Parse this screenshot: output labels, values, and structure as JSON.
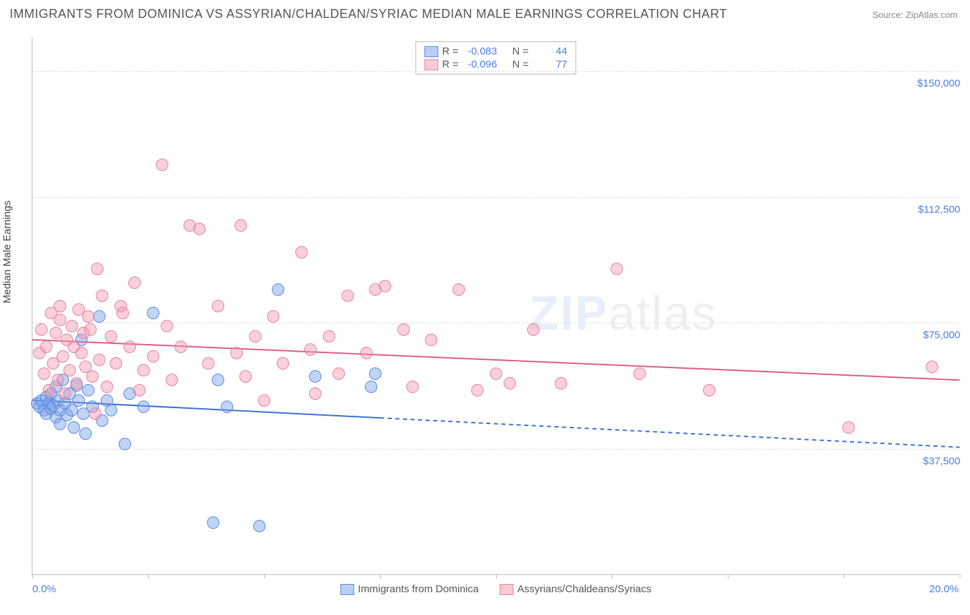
{
  "title": "IMMIGRANTS FROM DOMINICA VS ASSYRIAN/CHALDEAN/SYRIAC MEDIAN MALE EARNINGS CORRELATION CHART",
  "source": "Source: ZipAtlas.com",
  "ylabel": "Median Male Earnings",
  "watermark": {
    "zip": "ZIP",
    "atlas": "atlas"
  },
  "xaxis": {
    "min": 0.0,
    "max": 20.0,
    "ticks": [
      0.0,
      20.0
    ],
    "tick_labels": [
      "0.0%",
      "20.0%"
    ],
    "minor_ticks_every": 2.5,
    "label_color": "#4a7ee8"
  },
  "yaxis": {
    "min": 0,
    "max": 160000,
    "gridlines": [
      37500,
      75000,
      112500,
      150000
    ],
    "tick_labels": [
      "$37,500",
      "$75,000",
      "$112,500",
      "$150,000"
    ],
    "label_color": "#4a7ee8"
  },
  "grid_color": "#dddddd",
  "background_color": "#ffffff",
  "series": [
    {
      "name": "Immigrants from Dominica",
      "fill": "rgba(120,160,235,0.45)",
      "stroke": "#5a8adf",
      "swatch_fill": "rgba(120,160,235,0.5)",
      "swatch_stroke": "#5a8adf",
      "marker_radius": 9,
      "R": "-0.083",
      "N": "44",
      "trend": {
        "y_at_xmin": 52000,
        "y_at_xmax": 38000,
        "solid_until_x": 7.5,
        "color": "#3a6fd8",
        "width": 2
      },
      "points": [
        [
          0.1,
          51000
        ],
        [
          0.15,
          50000
        ],
        [
          0.2,
          52000
        ],
        [
          0.25,
          49000
        ],
        [
          0.3,
          53000
        ],
        [
          0.3,
          48000
        ],
        [
          0.35,
          51000
        ],
        [
          0.4,
          49500
        ],
        [
          0.4,
          54000
        ],
        [
          0.45,
          50500
        ],
        [
          0.5,
          47000
        ],
        [
          0.5,
          56000
        ],
        [
          0.55,
          52000
        ],
        [
          0.6,
          49000
        ],
        [
          0.6,
          45000
        ],
        [
          0.65,
          58000
        ],
        [
          0.7,
          51000
        ],
        [
          0.75,
          47500
        ],
        [
          0.8,
          54000
        ],
        [
          0.85,
          49000
        ],
        [
          0.9,
          44000
        ],
        [
          0.95,
          56500
        ],
        [
          1.0,
          52000
        ],
        [
          1.05,
          70000
        ],
        [
          1.1,
          48000
        ],
        [
          1.15,
          42000
        ],
        [
          1.2,
          55000
        ],
        [
          1.3,
          50000
        ],
        [
          1.45,
          77000
        ],
        [
          1.5,
          46000
        ],
        [
          1.6,
          52000
        ],
        [
          1.7,
          49000
        ],
        [
          2.0,
          39000
        ],
        [
          2.1,
          54000
        ],
        [
          2.4,
          50000
        ],
        [
          2.6,
          78000
        ],
        [
          3.9,
          15500
        ],
        [
          4.0,
          58000
        ],
        [
          4.2,
          50000
        ],
        [
          4.9,
          14500
        ],
        [
          5.3,
          85000
        ],
        [
          6.1,
          59000
        ],
        [
          7.3,
          56000
        ],
        [
          7.4,
          60000
        ]
      ]
    },
    {
      "name": "Assyrians/Chaldeans/Syriacs",
      "fill": "rgba(245,150,175,0.45)",
      "stroke": "#e6809f",
      "swatch_fill": "rgba(245,150,175,0.5)",
      "swatch_stroke": "#e6809f",
      "marker_radius": 9,
      "R": "-0.096",
      "N": "77",
      "trend": {
        "y_at_xmin": 70000,
        "y_at_xmax": 58000,
        "solid_until_x": 20.0,
        "color": "#e05a85",
        "width": 2
      },
      "points": [
        [
          0.15,
          66000
        ],
        [
          0.2,
          73000
        ],
        [
          0.25,
          60000
        ],
        [
          0.3,
          68000
        ],
        [
          0.35,
          55000
        ],
        [
          0.4,
          78000
        ],
        [
          0.45,
          63000
        ],
        [
          0.5,
          72000
        ],
        [
          0.55,
          58000
        ],
        [
          0.6,
          80000
        ],
        [
          0.6,
          76000
        ],
        [
          0.65,
          65000
        ],
        [
          0.7,
          54000
        ],
        [
          0.75,
          70000
        ],
        [
          0.8,
          61000
        ],
        [
          0.85,
          74000
        ],
        [
          0.9,
          68000
        ],
        [
          0.95,
          57000
        ],
        [
          1.0,
          79000
        ],
        [
          1.05,
          66000
        ],
        [
          1.1,
          72000
        ],
        [
          1.15,
          62000
        ],
        [
          1.2,
          77000
        ],
        [
          1.25,
          73000
        ],
        [
          1.3,
          59000
        ],
        [
          1.35,
          48000
        ],
        [
          1.4,
          91000
        ],
        [
          1.45,
          64000
        ],
        [
          1.5,
          83000
        ],
        [
          1.6,
          56000
        ],
        [
          1.7,
          71000
        ],
        [
          1.8,
          63000
        ],
        [
          1.9,
          80000
        ],
        [
          1.95,
          78000
        ],
        [
          2.1,
          68000
        ],
        [
          2.2,
          87000
        ],
        [
          2.3,
          55000
        ],
        [
          2.4,
          61000
        ],
        [
          2.6,
          65000
        ],
        [
          2.8,
          122000
        ],
        [
          2.9,
          74000
        ],
        [
          3.0,
          58000
        ],
        [
          3.2,
          68000
        ],
        [
          3.4,
          104000
        ],
        [
          3.6,
          103000
        ],
        [
          3.8,
          63000
        ],
        [
          4.0,
          80000
        ],
        [
          4.4,
          66000
        ],
        [
          4.5,
          104000
        ],
        [
          4.6,
          59000
        ],
        [
          4.8,
          71000
        ],
        [
          5.0,
          52000
        ],
        [
          5.2,
          77000
        ],
        [
          5.4,
          63000
        ],
        [
          5.8,
          96000
        ],
        [
          6.0,
          67000
        ],
        [
          6.1,
          54000
        ],
        [
          6.4,
          71000
        ],
        [
          6.6,
          60000
        ],
        [
          6.8,
          83000
        ],
        [
          7.2,
          66000
        ],
        [
          7.4,
          85000
        ],
        [
          7.6,
          86000
        ],
        [
          8.0,
          73000
        ],
        [
          8.2,
          56000
        ],
        [
          8.6,
          70000
        ],
        [
          9.2,
          85000
        ],
        [
          9.6,
          55000
        ],
        [
          10.0,
          60000
        ],
        [
          10.3,
          57000
        ],
        [
          10.8,
          73000
        ],
        [
          11.4,
          57000
        ],
        [
          12.6,
          91000
        ],
        [
          13.1,
          60000
        ],
        [
          14.6,
          55000
        ],
        [
          17.6,
          44000
        ],
        [
          19.4,
          62000
        ]
      ]
    }
  ],
  "legend_corr_labels": {
    "R": "R =",
    "N": "N ="
  }
}
